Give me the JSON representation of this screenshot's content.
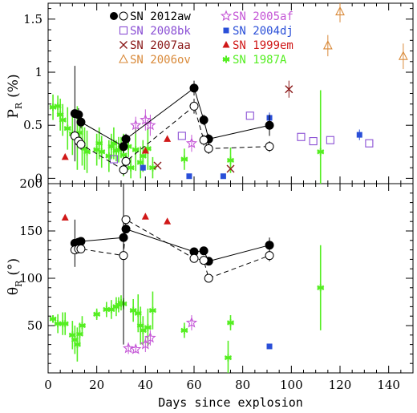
{
  "chart_data": [
    {
      "type": "scatter",
      "panel": "top",
      "ylabel": "P",
      "ylabel_sub": "R",
      "ylabel_unit": "(%)",
      "xlim": [
        0,
        150
      ],
      "ylim": [
        -0.05,
        1.65
      ],
      "yticks": [
        0,
        0.5,
        1,
        1.5
      ],
      "ytick_labels": [
        "0",
        "0.5",
        "1",
        "1.5"
      ],
      "legend": [
        {
          "label": "SN 2012aw",
          "color": "#000000",
          "marker": "filled-open-circle"
        },
        {
          "label": "SN 2008bk",
          "color": "#8a4fd4",
          "marker": "open-square"
        },
        {
          "label": "SN 2007aa",
          "color": "#8b1a1a",
          "marker": "x"
        },
        {
          "label": "SN 2006ov",
          "color": "#d98a3a",
          "marker": "open-triangle"
        },
        {
          "label": "SN 2005af",
          "color": "#c455d6",
          "marker": "open-star"
        },
        {
          "label": "SN 2004dj",
          "color": "#2a4fd8",
          "marker": "filled-square"
        },
        {
          "label": "SN 1999em",
          "color": "#d01818",
          "marker": "filled-triangle"
        },
        {
          "label": "SN 1987A",
          "color": "#55ee22",
          "marker": "asterisk"
        }
      ],
      "series": [
        {
          "name": "SN 2012aw",
          "style": "filled-circle-solid",
          "color": "#000000",
          "points": [
            [
              11,
              0.61,
              0.45
            ],
            [
              12.5,
              0.6,
              0.06
            ],
            [
              13.5,
              0.53,
              0.06
            ],
            [
              31,
              0.3,
              0.06
            ],
            [
              32,
              0.37,
              0.05
            ],
            [
              60,
              0.85,
              0.07
            ],
            [
              64,
              0.55,
              0.05
            ],
            [
              66,
              0.37,
              0.05
            ],
            [
              91,
              0.5,
              0.1
            ]
          ]
        },
        {
          "name": "SN 2012aw",
          "style": "open-circle-dashed",
          "color": "#000000",
          "points": [
            [
              11,
              0.4,
              0.05
            ],
            [
              12.5,
              0.35,
              0.05
            ],
            [
              13.5,
              0.32,
              0.05
            ],
            [
              31,
              0.08,
              0.05
            ],
            [
              32,
              0.16,
              0.05
            ],
            [
              60,
              0.68,
              0.07
            ],
            [
              64,
              0.36,
              0.05
            ],
            [
              66,
              0.28,
              0.05
            ],
            [
              91,
              0.3,
              0.05
            ]
          ]
        },
        {
          "name": "SN 2008bk",
          "style": "open-square",
          "color": "#8a4fd4",
          "points": [
            [
              27,
              0.18
            ],
            [
              55,
              0.4
            ],
            [
              83,
              0.59
            ],
            [
              104,
              0.39
            ],
            [
              109,
              0.35
            ],
            [
              116,
              0.36
            ],
            [
              132,
              0.33
            ]
          ]
        },
        {
          "name": "SN 2007aa",
          "style": "x",
          "color": "#8b1a1a",
          "points": [
            [
              45,
              0.12,
              0
            ],
            [
              75,
              0.09,
              0
            ],
            [
              99,
              0.84,
              0.08
            ]
          ]
        },
        {
          "name": "SN 2006ov",
          "style": "open-triangle",
          "color": "#d98a3a",
          "points": [
            [
              115,
              1.25,
              0.1
            ],
            [
              120,
              1.57,
              0.1
            ],
            [
              146,
              1.15,
              0.12
            ]
          ]
        },
        {
          "name": "SN 2005af",
          "style": "open-star",
          "color": "#c455d6",
          "points": [
            [
              36,
              0.5,
              0.08
            ],
            [
              40,
              0.55,
              0.1
            ],
            [
              42,
              0.5,
              0.1
            ],
            [
              59,
              0.33,
              0.08
            ]
          ]
        },
        {
          "name": "SN 2004dj",
          "style": "filled-square",
          "color": "#2a4fd8",
          "points": [
            [
              39,
              0.1,
              0.03
            ],
            [
              58,
              0.02,
              0.02
            ],
            [
              72,
              0.02,
              0.02
            ],
            [
              91,
              0.57,
              0.05
            ],
            [
              128,
              0.41,
              0.05
            ]
          ]
        },
        {
          "name": "SN 1999em",
          "style": "filled-triangle",
          "color": "#d01818",
          "points": [
            [
              7,
              0.2,
              0
            ],
            [
              40,
              0.26,
              0
            ],
            [
              49,
              0.37,
              0
            ]
          ]
        },
        {
          "name": "SN 1987A",
          "style": "asterisk",
          "color": "#55ee22",
          "points": [
            [
              2,
              0.67,
              0.12
            ],
            [
              4,
              0.68,
              0.1
            ],
            [
              5,
              0.6,
              0.15
            ],
            [
              6,
              0.55,
              0.15
            ],
            [
              8,
              0.47,
              0.2
            ],
            [
              10,
              0.42,
              0.2
            ],
            [
              12,
              0.38,
              0.3
            ],
            [
              13,
              0.43,
              0.15
            ],
            [
              14,
              0.32,
              0.2
            ],
            [
              15,
              0.28,
              0.2
            ],
            [
              16,
              0.25,
              0.2
            ],
            [
              20,
              0.27,
              0.15
            ],
            [
              21,
              0.33,
              0.15
            ],
            [
              22,
              0.25,
              0.15
            ],
            [
              25,
              0.21,
              0.15
            ],
            [
              26,
              0.3,
              0.12
            ],
            [
              27,
              0.33,
              0.15
            ],
            [
              28,
              0.26,
              0.1
            ],
            [
              29,
              0.27,
              0.12
            ],
            [
              30,
              0.29,
              0.1
            ],
            [
              31,
              0.22,
              0.2
            ],
            [
              33,
              0.3,
              0.1
            ],
            [
              34,
              0.1,
              0.1
            ],
            [
              36,
              0.27,
              0.2
            ],
            [
              38,
              0.15,
              0.15
            ],
            [
              39,
              0.21,
              0.15
            ],
            [
              41,
              0.28,
              0.2
            ],
            [
              43,
              0.1,
              0.1
            ],
            [
              56,
              0.18,
              0.1
            ],
            [
              75,
              0.17,
              0.12
            ],
            [
              112,
              0.25,
              0.58
            ]
          ]
        }
      ]
    },
    {
      "type": "scatter",
      "panel": "bottom",
      "xlabel": "Days since explosion",
      "ylabel": "θ",
      "ylabel_sub": "R",
      "ylabel_unit": "(°)",
      "xlim": [
        0,
        150
      ],
      "ylim": [
        0,
        200
      ],
      "xticks": [
        0,
        20,
        40,
        60,
        80,
        100,
        120,
        140
      ],
      "xtick_labels": [
        "0",
        "20",
        "40",
        "60",
        "80",
        "100",
        "120",
        "140"
      ],
      "yticks": [
        50,
        100,
        150,
        200
      ],
      "ytick_labels": [
        "50",
        "100",
        "150",
        "200"
      ],
      "series": [
        {
          "name": "SN 2012aw",
          "style": "filled-circle-solid",
          "color": "#000000",
          "points": [
            [
              11,
              137,
              25
            ],
            [
              12.5,
              138,
              4
            ],
            [
              13.5,
              139,
              4
            ],
            [
              31,
              143,
              113
            ],
            [
              32,
              152,
              4
            ],
            [
              60,
              128,
              4
            ],
            [
              64,
              129,
              4
            ],
            [
              66,
              118,
              4
            ],
            [
              91,
              135,
              8
            ]
          ]
        },
        {
          "name": "SN 2012aw",
          "style": "open-circle-dashed",
          "color": "#000000",
          "points": [
            [
              11,
              130,
              4
            ],
            [
              12.5,
              131,
              4
            ],
            [
              13.5,
              131,
              4
            ],
            [
              31,
              124,
              4
            ],
            [
              32,
              162,
              4
            ],
            [
              60,
              121,
              4
            ],
            [
              64,
              119,
              4
            ],
            [
              66,
              100,
              4
            ],
            [
              91,
              124,
              6
            ]
          ]
        },
        {
          "name": "SN 2005af",
          "style": "open-star",
          "color": "#c455d6",
          "points": [
            [
              33,
              26,
              6
            ],
            [
              36,
              25,
              4
            ],
            [
              40,
              30,
              8
            ],
            [
              42,
              37,
              8
            ],
            [
              59,
              53,
              8
            ]
          ]
        },
        {
          "name": "SN 2004dj",
          "style": "filled-square",
          "color": "#2a4fd8",
          "points": [
            [
              91,
              28,
              0
            ]
          ]
        },
        {
          "name": "SN 1999em",
          "style": "filled-triangle",
          "color": "#d01818",
          "points": [
            [
              7,
              164,
              0
            ],
            [
              40,
              165,
              0
            ],
            [
              49,
              160,
              0
            ]
          ]
        },
        {
          "name": "SN 1987A",
          "style": "asterisk",
          "color": "#55ee22",
          "points": [
            [
              2,
              57,
              4
            ],
            [
              4,
              52,
              10
            ],
            [
              6,
              52,
              12
            ],
            [
              7,
              52,
              12
            ],
            [
              10,
              40,
              15
            ],
            [
              11,
              35,
              15
            ],
            [
              12,
              30,
              18
            ],
            [
              13,
              41,
              12
            ],
            [
              14,
              50,
              10
            ],
            [
              20,
              62,
              6
            ],
            [
              24,
              67,
              8
            ],
            [
              26,
              67,
              10
            ],
            [
              28,
              70,
              10
            ],
            [
              29,
              72,
              8
            ],
            [
              30,
              74,
              8
            ],
            [
              31,
              73,
              6
            ],
            [
              35,
              66,
              12
            ],
            [
              37,
              63,
              20
            ],
            [
              38,
              50,
              20
            ],
            [
              39,
              45,
              15
            ],
            [
              41,
              48,
              20
            ],
            [
              43,
              66,
              20
            ],
            [
              56,
              45,
              8
            ],
            [
              74,
              16,
              18
            ],
            [
              75,
              53,
              8
            ],
            [
              112,
              90,
              45
            ]
          ]
        }
      ]
    }
  ]
}
